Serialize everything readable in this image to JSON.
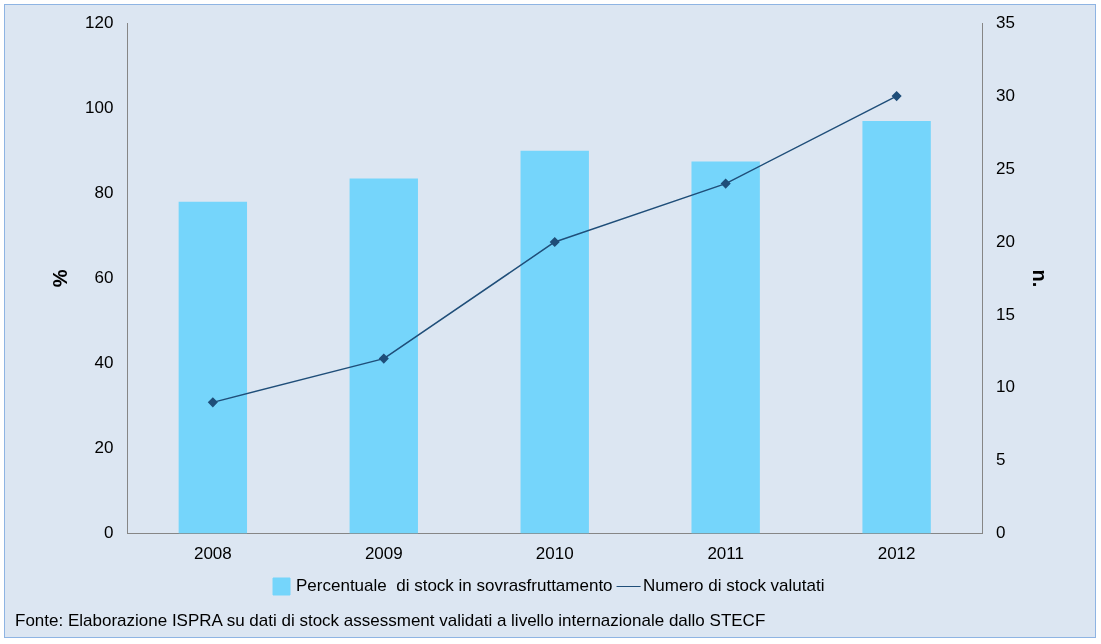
{
  "chart_data": {
    "type": "bar",
    "categories": [
      "2008",
      "2009",
      "2010",
      "2011",
      "2012"
    ],
    "series": [
      {
        "name": "Percentuale  di stock in sovrasfruttamento",
        "color": "#75d5fb",
        "values": [
          78,
          83.5,
          90,
          87.5,
          97
        ]
      },
      {
        "name": "Numero di stock valutati",
        "type": "line",
        "axis": "y2",
        "color": "#1f4e79",
        "marker": "diamond",
        "values": [
          9,
          12,
          20,
          24,
          30
        ]
      }
    ],
    "ylabel": "%",
    "y2label": "n.",
    "ylim": [
      0,
      120
    ],
    "yticks": [
      0,
      20,
      40,
      60,
      80,
      100,
      120
    ],
    "y2lim": [
      0,
      35
    ],
    "y2ticks": [
      0,
      5,
      10,
      15,
      20,
      25,
      30,
      35
    ],
    "grid": false,
    "legend": "bottom",
    "annotations": [
      "Fonte: Elaborazione ISPRA su dati di stock assessment validati a livello internazionale dallo STECF"
    ]
  }
}
